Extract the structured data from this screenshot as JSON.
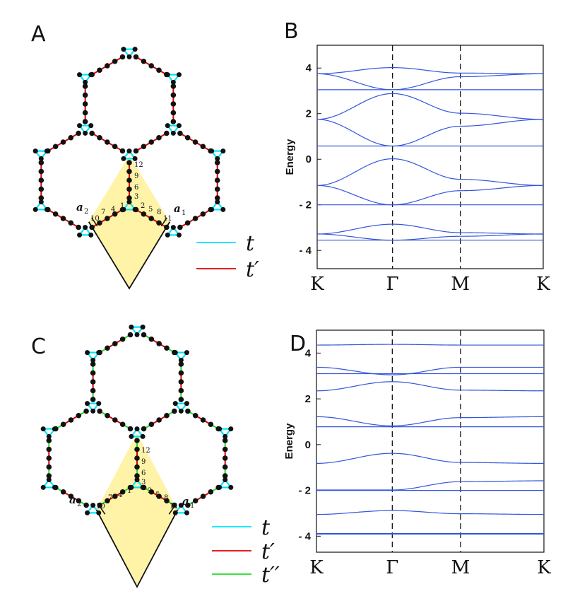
{
  "panels": {
    "A": {
      "label": "A",
      "vector_a1": "a",
      "vector_a1_sub": "1",
      "vector_a2": "a",
      "vector_a2_sub": "2",
      "site_numbers": [
        "12",
        "9",
        "6",
        "3",
        "1",
        "2",
        "4",
        "5",
        "7",
        "8",
        "10",
        "11"
      ],
      "legend": [
        {
          "symbol": "t",
          "color": "#00e5ff"
        },
        {
          "symbol": "t′",
          "color": "#e00000"
        }
      ]
    },
    "B": {
      "label": "B"
    },
    "C": {
      "label": "C",
      "vector_a1": "a",
      "vector_a1_sub": "1",
      "vector_a2": "a",
      "vector_a2_sub": "2",
      "site_numbers": [
        "12",
        "9",
        "6",
        "3",
        "1",
        "2",
        "4",
        "5",
        "7",
        "8",
        "10",
        "11"
      ],
      "legend": [
        {
          "symbol": "t",
          "color": "#00e5ff"
        },
        {
          "symbol": "t′",
          "color": "#e00000"
        },
        {
          "symbol": "t′′",
          "color": "#22dd22"
        }
      ]
    },
    "D": {
      "label": "D"
    }
  },
  "colors": {
    "t": "#00e5ff",
    "t_prime": "#e00000",
    "t_double_prime": "#22dd22",
    "band": "#3355dd",
    "cell": "#fff3a8"
  },
  "chart_data": [
    {
      "type": "line",
      "panel": "B",
      "ylabel": "Energy",
      "ylim": [
        -4.8,
        5
      ],
      "yticks": [
        4,
        2,
        0,
        -2,
        -4
      ],
      "ytick_labels": [
        "4",
        "2",
        "0",
        "- 2",
        "- 4"
      ],
      "x_kpoints": [
        "K",
        "Γ",
        "M",
        "K"
      ],
      "x_positions": [
        0,
        1,
        1.9,
        3.0
      ],
      "dashed_at": [
        "Γ",
        "M"
      ],
      "series": [
        {
          "values": [
            3.75,
            4.02,
            3.78,
            3.75
          ]
        },
        {
          "values": [
            3.75,
            3.05,
            3.62,
            3.75
          ]
        },
        {
          "values": [
            3.05,
            3.05,
            3.05,
            3.05
          ]
        },
        {
          "values": [
            1.75,
            2.88,
            2.02,
            1.75
          ]
        },
        {
          "values": [
            1.75,
            0.58,
            1.45,
            1.75
          ]
        },
        {
          "values": [
            0.58,
            0.58,
            0.58,
            0.58
          ]
        },
        {
          "values": [
            -1.15,
            0.02,
            -0.88,
            -1.15
          ]
        },
        {
          "values": [
            -1.15,
            -2.0,
            -1.38,
            -1.15
          ]
        },
        {
          "values": [
            -2.0,
            -2.0,
            -2.0,
            -2.0
          ]
        },
        {
          "values": [
            -3.28,
            -2.85,
            -3.22,
            -3.28
          ]
        },
        {
          "values": [
            -3.28,
            -3.55,
            -3.38,
            -3.28
          ]
        },
        {
          "values": [
            -3.55,
            -3.55,
            -3.55,
            -3.55
          ]
        }
      ]
    },
    {
      "type": "line",
      "panel": "D",
      "ylabel": "Energy",
      "ylim": [
        -4.7,
        5
      ],
      "yticks": [
        4,
        2,
        0,
        -2,
        -4
      ],
      "ytick_labels": [
        "4",
        "2",
        "0",
        "- 2",
        "- 4"
      ],
      "x_kpoints": [
        "K",
        "Γ",
        "M",
        "K"
      ],
      "x_positions": [
        0,
        1,
        1.9,
        3.0
      ],
      "dashed_at": [
        "Γ",
        "M"
      ],
      "series": [
        {
          "values": [
            4.35,
            4.38,
            4.35,
            4.35
          ]
        },
        {
          "values": [
            3.38,
            3.05,
            3.38,
            3.38
          ]
        },
        {
          "values": [
            3.1,
            3.1,
            3.1,
            3.1
          ]
        },
        {
          "values": [
            2.35,
            2.75,
            2.38,
            2.35
          ]
        },
        {
          "values": [
            1.22,
            0.82,
            1.18,
            1.22
          ]
        },
        {
          "values": [
            0.78,
            0.78,
            0.78,
            0.78
          ]
        },
        {
          "values": [
            -0.82,
            -0.38,
            -0.78,
            -0.82
          ]
        },
        {
          "values": [
            -1.98,
            -1.98,
            -1.62,
            -1.58
          ]
        },
        {
          "values": [
            -2.0,
            -2.0,
            -2.0,
            -2.0
          ]
        },
        {
          "values": [
            -3.05,
            -2.88,
            -3.02,
            -3.05
          ]
        },
        {
          "values": [
            -3.88,
            -3.88,
            -3.88,
            -3.88
          ]
        },
        {
          "values": [
            -3.91,
            -3.91,
            -3.91,
            -3.91
          ]
        }
      ]
    }
  ]
}
